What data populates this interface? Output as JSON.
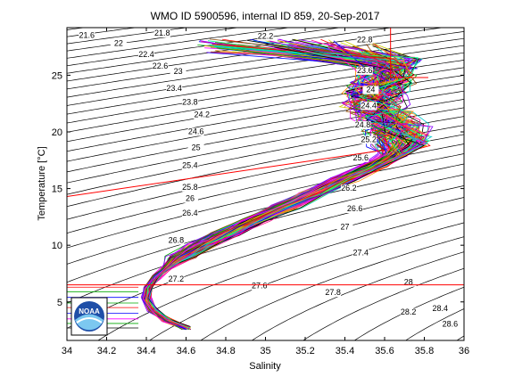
{
  "chart_data": {
    "type": "line",
    "title": "WMO ID 5900596, internal ID 859, 20-Sep-2017",
    "xlabel": "Salinity",
    "ylabel": "Temperature [°C]",
    "xlim": [
      34,
      36
    ],
    "ylim": [
      1.6,
      29.2
    ],
    "xticks": [
      "34",
      "34.2",
      "34.4",
      "34.6",
      "34.8",
      "35",
      "35.2",
      "35.4",
      "35.6",
      "35.8",
      "36"
    ],
    "yticks": [
      "5",
      "10",
      "15",
      "20",
      "25"
    ],
    "isopycnal_labels": [
      {
        "text": "21.6",
        "s": 34.1,
        "t": 28.3
      },
      {
        "text": "21.8",
        "s": 34.48,
        "t": 28.5
      },
      {
        "text": "22",
        "s": 34.26,
        "t": 27.6
      },
      {
        "text": "22.2",
        "s": 35.0,
        "t": 28.2
      },
      {
        "text": "22.4",
        "s": 34.4,
        "t": 26.6
      },
      {
        "text": "22.6",
        "s": 34.47,
        "t": 25.6
      },
      {
        "text": "22.8",
        "s": 35.5,
        "t": 27.9
      },
      {
        "text": "23",
        "s": 34.56,
        "t": 25.1
      },
      {
        "text": "23.4",
        "s": 34.54,
        "t": 23.6
      },
      {
        "text": "23.8",
        "s": 34.62,
        "t": 22.4
      },
      {
        "text": "23.6",
        "s": 35.5,
        "t": 25.2
      },
      {
        "text": "24",
        "s": 35.53,
        "t": 23.5
      },
      {
        "text": "24.2",
        "s": 34.68,
        "t": 21.3
      },
      {
        "text": "24.4",
        "s": 35.52,
        "t": 22.1
      },
      {
        "text": "24.6",
        "s": 34.65,
        "t": 19.8
      },
      {
        "text": "24.8",
        "s": 35.49,
        "t": 20.4
      },
      {
        "text": "25",
        "s": 34.65,
        "t": 18.4
      },
      {
        "text": "25.2",
        "s": 35.52,
        "t": 19.1
      },
      {
        "text": "25.4",
        "s": 34.62,
        "t": 16.8
      },
      {
        "text": "25.6",
        "s": 35.48,
        "t": 17.5
      },
      {
        "text": "25.8",
        "s": 34.62,
        "t": 14.9
      },
      {
        "text": "26",
        "s": 34.62,
        "t": 13.9
      },
      {
        "text": "26.2",
        "s": 35.42,
        "t": 14.8
      },
      {
        "text": "26.4",
        "s": 34.62,
        "t": 12.6
      },
      {
        "text": "26.6",
        "s": 35.45,
        "t": 13.0
      },
      {
        "text": "26.8",
        "s": 34.55,
        "t": 10.2
      },
      {
        "text": "27",
        "s": 35.4,
        "t": 11.4
      },
      {
        "text": "27.2",
        "s": 34.55,
        "t": 6.8
      },
      {
        "text": "27.4",
        "s": 35.48,
        "t": 9.1
      },
      {
        "text": "27.6",
        "s": 34.97,
        "t": 6.2
      },
      {
        "text": "27.8",
        "s": 35.34,
        "t": 5.6
      },
      {
        "text": "28",
        "s": 35.72,
        "t": 6.5
      },
      {
        "text": "28.2",
        "s": 35.72,
        "t": 3.9
      },
      {
        "text": "28.4",
        "s": 35.88,
        "t": 4.2
      },
      {
        "text": "28.6",
        "s": 35.93,
        "t": 2.8
      }
    ],
    "ts_profile_mean": {
      "s": [
        34.6,
        34.5,
        34.43,
        34.4,
        34.41,
        34.45,
        34.5,
        34.58,
        34.68,
        34.8,
        34.95,
        35.1,
        35.25,
        35.4,
        35.55,
        35.65,
        35.68,
        35.66,
        35.6,
        35.55,
        35.55,
        35.6,
        35.62
      ],
      "t": [
        2.7,
        3.4,
        4.3,
        5.3,
        6.3,
        7.2,
        8.0,
        9.0,
        10.0,
        11.0,
        12.2,
        13.4,
        14.6,
        15.8,
        17.0,
        18.0,
        19.2,
        20.3,
        21.3,
        22.4,
        23.6,
        24.8,
        26.0
      ]
    },
    "profile_count": 120,
    "grid": false
  },
  "logo": {
    "text": "NOAA"
  }
}
